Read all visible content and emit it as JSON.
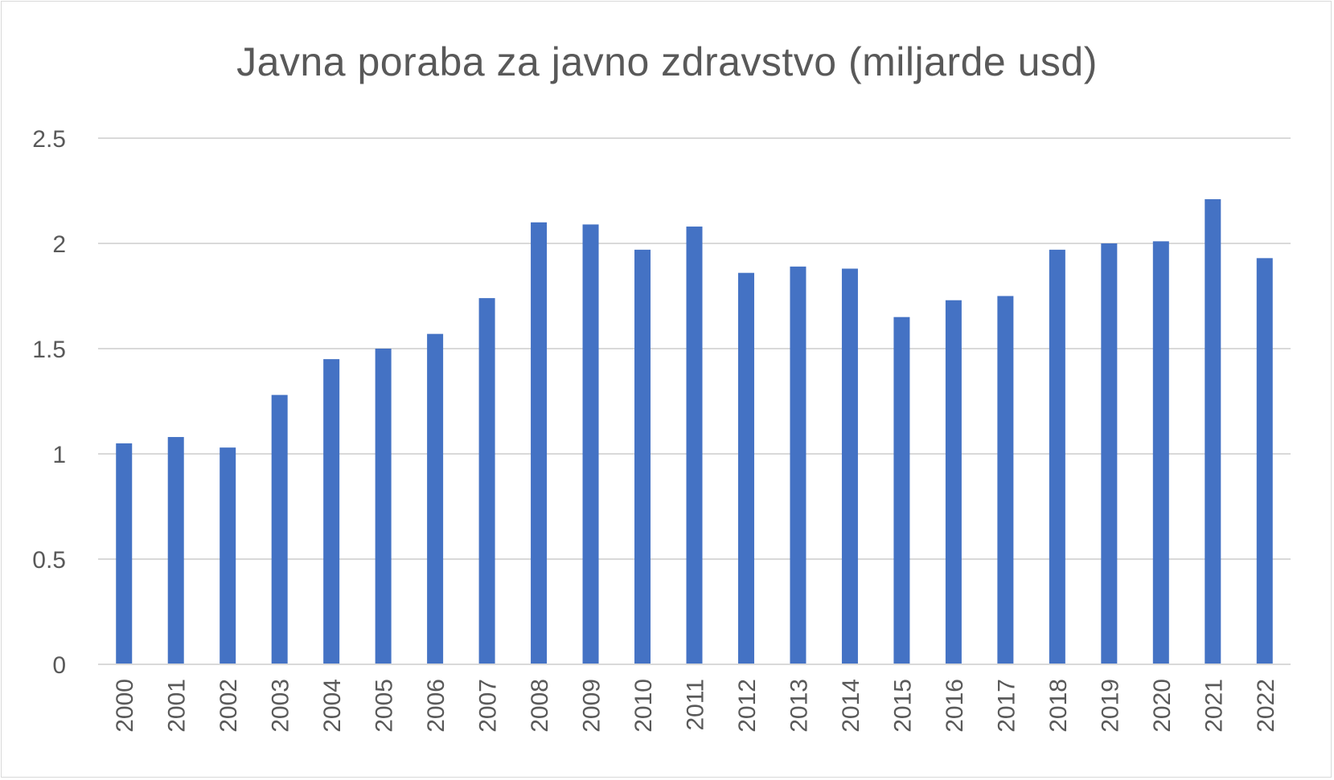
{
  "chart_data": {
    "type": "bar",
    "title": "Javna poraba za javno zdravstvo (miljarde usd)",
    "xlabel": "",
    "ylabel": "",
    "categories": [
      "2000",
      "2001",
      "2002",
      "2003",
      "2004",
      "2005",
      "2006",
      "2007",
      "2008",
      "2009",
      "2010",
      "2011",
      "2012",
      "2013",
      "2014",
      "2015",
      "2016",
      "2017",
      "2018",
      "2019",
      "2020",
      "2021",
      "2022"
    ],
    "values": [
      1.05,
      1.08,
      1.03,
      1.28,
      1.45,
      1.5,
      1.57,
      1.74,
      2.1,
      2.09,
      1.97,
      2.08,
      1.86,
      1.89,
      1.88,
      1.65,
      1.73,
      1.75,
      1.97,
      2.0,
      2.01,
      2.21,
      1.93
    ],
    "ylim": [
      0,
      2.5
    ],
    "yticks": [
      "0",
      "0.5",
      "1",
      "1.5",
      "2",
      "2.5"
    ],
    "grid": true,
    "legend": "none",
    "colors": {
      "bar": "#4472C4",
      "gridline": "#d9d9d9",
      "text": "#595959"
    }
  }
}
